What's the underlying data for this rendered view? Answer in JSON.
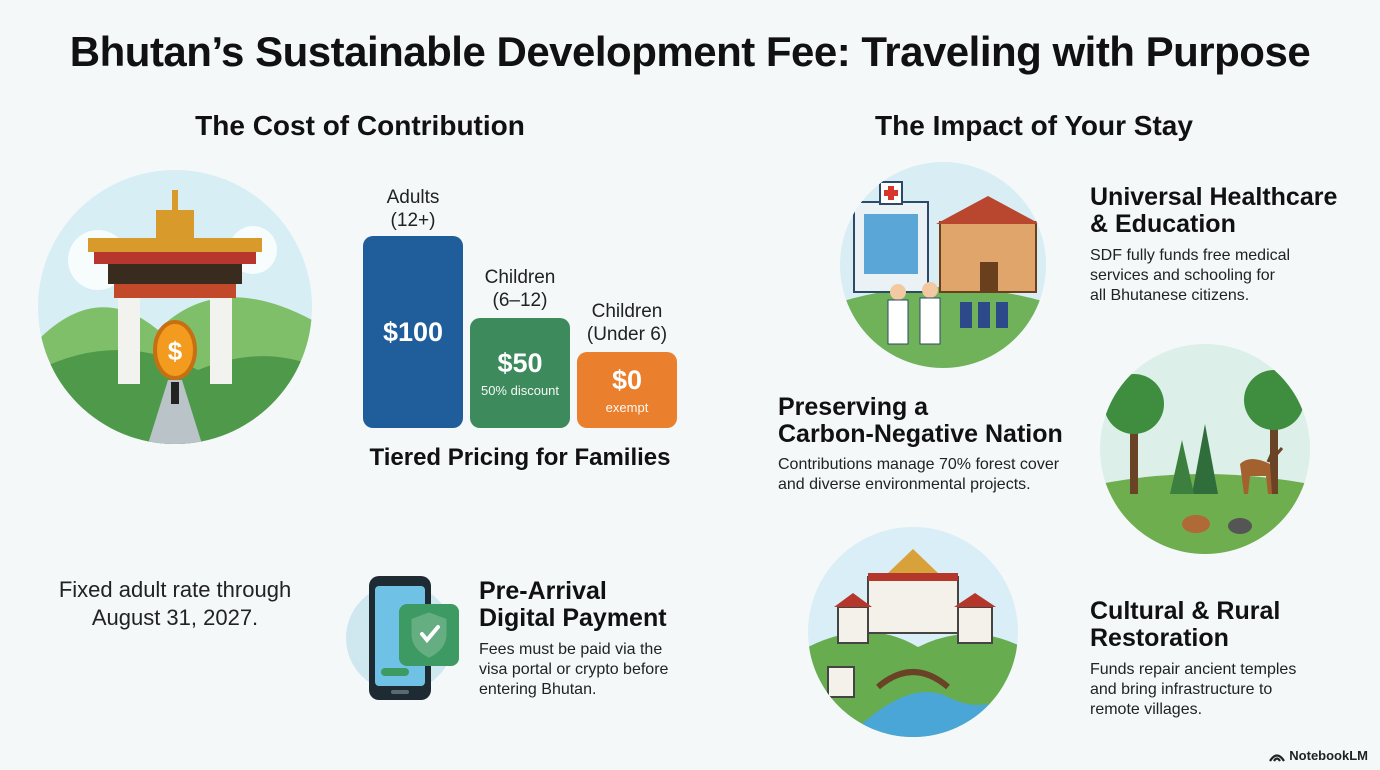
{
  "title": "Bhutan’s Sustainable Development Fee: Traveling with Purpose",
  "cost_section": {
    "heading": "The Cost of Contribution",
    "tiers": [
      {
        "label_line1": "Adults",
        "label_line2": "(12+)",
        "amount": "$100",
        "note": "",
        "color": "#1f5d9b"
      },
      {
        "label_line1": "Children",
        "label_line2": "(6–12)",
        "amount": "$50",
        "note": "50% discount",
        "color": "#3d8a5c"
      },
      {
        "label_line1": "Children",
        "label_line2": "(Under 6)",
        "amount": "$0",
        "note": "exempt",
        "color": "#ea7f2d"
      }
    ],
    "tier_caption": "Tiered Pricing for Families",
    "fixed_rate_line1": "Fixed adult rate through",
    "fixed_rate_line2": "August 31, 2027.",
    "payment": {
      "heading_line1": "Pre-Arrival",
      "heading_line2": "Digital Payment",
      "body_line1": "Fees must be paid via the",
      "body_line2": "visa portal or crypto before",
      "body_line3": "entering Bhutan."
    }
  },
  "impact_section": {
    "heading": "The Impact of Your Stay",
    "healthcare": {
      "heading_line1": "Universal Healthcare",
      "heading_line2": "& Education",
      "body_line1": "SDF fully funds free medical",
      "body_line2": "services and schooling for",
      "body_line3": "all Bhutanese citizens."
    },
    "environment": {
      "heading_line1": "Preserving a",
      "heading_line2": "Carbon-Negative Nation",
      "body_line1": "Contributions manage 70% forest cover",
      "body_line2": "and diverse environmental projects."
    },
    "culture": {
      "heading_line1": "Cultural & Rural",
      "heading_line2": "Restoration",
      "body_line1": "Funds repair ancient temples",
      "body_line2": "and bring infrastructure to",
      "body_line3": "remote villages."
    }
  },
  "watermark": "NotebookLM",
  "icons": [
    "gate-coin-illustration",
    "phone-shield-icon",
    "hospital-school-illustration",
    "forest-wildlife-illustration",
    "dzong-village-illustration",
    "notebooklm-logo-icon"
  ]
}
